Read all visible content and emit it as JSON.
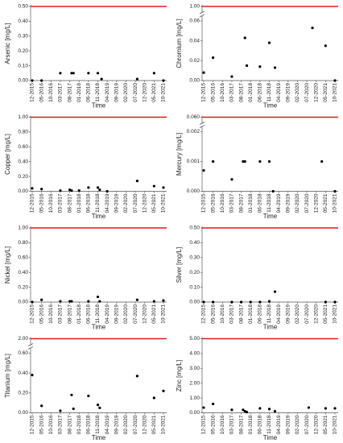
{
  "chart_data": [
    {
      "type": "scatter",
      "y_label": "Arsenic [mg/L]",
      "x_label": "Time",
      "color": "#000000",
      "limit": 0.5,
      "limit_color": "#e31a1c",
      "x": [
        "12-2015",
        "05-2016",
        "03-2017",
        "09-2017",
        "10-2017",
        "06-2018",
        "11-2018",
        "01-2019",
        "08-2020",
        "05-2021",
        "10-2021"
      ],
      "values": [
        0,
        0,
        0.05,
        0.05,
        0.05,
        0.05,
        0.05,
        0.01,
        0.01,
        0.05,
        0
      ],
      "xlim": [
        "12-2015",
        "10-2021"
      ],
      "xticks": [
        "12-2015",
        "05-2016",
        "10-2016",
        "03-2017",
        "08-2017",
        "01-2018",
        "06-2018",
        "11-2018",
        "04-2019",
        "09-2019",
        "02-2020",
        "07-2020",
        "12-2020",
        "05-2021",
        "10-2021"
      ],
      "ylim": [
        0,
        0.5
      ],
      "yticks": [
        {
          "value": 0,
          "label": "0.00"
        },
        {
          "value": 0.1,
          "label": "0.10"
        },
        {
          "value": 0.2,
          "label": "0.20"
        },
        {
          "value": 0.3,
          "label": "0.30"
        },
        {
          "value": 0.4,
          "label": "0.40"
        },
        {
          "value": 0.5,
          "label": "0.50"
        }
      ]
    },
    {
      "type": "scatter",
      "y_label": "Chromium [mg/L]",
      "x_label": "Time",
      "color": "#000000",
      "limit": 1,
      "limit_color": "#e31a1c",
      "x": [
        "12-2015",
        "05-2016",
        "03-2017",
        "10-2017",
        "11-2017",
        "06-2018",
        "11-2018",
        "02-2019",
        "10-2020",
        "05-2021",
        "10-2021"
      ],
      "values": [
        0.008,
        0.023,
        0.004,
        0.043,
        0.015,
        0.014,
        0.038,
        0.013,
        0.053,
        0.035,
        0
      ],
      "xlim": [
        "12-2015",
        "10-2021"
      ],
      "xticks": [
        "12-2015",
        "05-2016",
        "10-2016",
        "03-2017",
        "08-2017",
        "01-2018",
        "06-2018",
        "11-2018",
        "04-2019",
        "09-2019",
        "02-2020",
        "07-2020",
        "12-2020",
        "05-2021",
        "10-2021"
      ],
      "ylim": [
        0,
        0.06
      ],
      "yticks": [
        {
          "value": 0,
          "label": "0.00"
        },
        {
          "value": 0.02,
          "label": "0.02"
        },
        {
          "value": 0.04,
          "label": "0.04"
        },
        {
          "value": 0.06,
          "label": "0.06"
        }
      ],
      "upper_ticks": [
        {
          "value": 1,
          "label": "1.00"
        }
      ]
    },
    {
      "type": "scatter",
      "y_label": "Copper [mg/L]",
      "x_label": "Time",
      "color": "#000000",
      "limit": 1,
      "limit_color": "#e31a1c",
      "x": [
        "12-2015",
        "05-2016",
        "03-2017",
        "08-2017",
        "09-2017",
        "01-2018",
        "06-2018",
        "11-2018",
        "12-2018",
        "04-2019",
        "08-2020",
        "05-2021",
        "10-2021"
      ],
      "values": [
        0.04,
        0.03,
        0.01,
        0.02,
        0.01,
        0.01,
        0.05,
        0.05,
        0.02,
        0,
        0.14,
        0.07,
        0.05
      ],
      "xlim": [
        "12-2015",
        "10-2021"
      ],
      "xticks": [
        "12-2015",
        "05-2016",
        "10-2016",
        "03-2017",
        "08-2017",
        "01-2018",
        "06-2018",
        "11-2018",
        "04-2019",
        "09-2019",
        "02-2020",
        "07-2020",
        "12-2020",
        "05-2021",
        "10-2021"
      ],
      "ylim": [
        0,
        1
      ],
      "yticks": [
        {
          "value": 0,
          "label": "0.00"
        },
        {
          "value": 0.2,
          "label": "0.20"
        },
        {
          "value": 0.4,
          "label": "0.40"
        },
        {
          "value": 0.6,
          "label": "0.60"
        },
        {
          "value": 0.8,
          "label": "0.80"
        },
        {
          "value": 1,
          "label": "1.00"
        }
      ]
    },
    {
      "type": "scatter",
      "y_label": "Mercury [mg/L]",
      "x_label": "Time",
      "color": "#000000",
      "limit": 0.06,
      "limit_color": "#e31a1c",
      "x": [
        "12-2015",
        "05-2016",
        "03-2017",
        "09-2017",
        "10-2017",
        "06-2018",
        "11-2018",
        "01-2019",
        "03-2021",
        "10-2021"
      ],
      "values": [
        0.0007,
        0.001,
        0.0004,
        0.001,
        0.001,
        0.001,
        0.001,
        0,
        0.001,
        0
      ],
      "xlim": [
        "12-2015",
        "10-2021"
      ],
      "xticks": [
        "12-2015",
        "05-2016",
        "10-2016",
        "03-2017",
        "08-2017",
        "01-2018",
        "06-2018",
        "11-2018",
        "04-2019",
        "09-2019",
        "02-2020",
        "07-2020",
        "12-2020",
        "05-2021",
        "10-2021"
      ],
      "ylim": [
        0,
        0.002
      ],
      "yticks": [
        {
          "value": 0,
          "label": "0.000"
        },
        {
          "value": 0.001,
          "label": "0.001"
        },
        {
          "value": 0.002,
          "label": "0.002"
        }
      ],
      "upper_ticks": [
        {
          "value": 0.06,
          "label": "0.060"
        }
      ]
    },
    {
      "type": "scatter",
      "y_label": "Nickel [mg/L]",
      "x_label": "Time",
      "color": "#000000",
      "limit": 1,
      "limit_color": "#e31a1c",
      "x": [
        "12-2015",
        "05-2016",
        "03-2017",
        "08-2017",
        "09-2017",
        "06-2018",
        "11-2018",
        "12-2018",
        "08-2020",
        "05-2021",
        "10-2021"
      ],
      "values": [
        0,
        0.03,
        0.01,
        0.01,
        0.01,
        0.01,
        0.07,
        0.01,
        0.03,
        0.01,
        0.02
      ],
      "xlim": [
        "12-2015",
        "10-2021"
      ],
      "xticks": [
        "12-2015",
        "05-2016",
        "10-2016",
        "03-2017",
        "08-2017",
        "01-2018",
        "06-2018",
        "11-2018",
        "04-2019",
        "09-2019",
        "02-2020",
        "07-2020",
        "12-2020",
        "05-2021",
        "10-2021"
      ],
      "ylim": [
        0,
        1
      ],
      "yticks": [
        {
          "value": 0,
          "label": "0.00"
        },
        {
          "value": 0.2,
          "label": "0.20"
        },
        {
          "value": 0.4,
          "label": "0.40"
        },
        {
          "value": 0.6,
          "label": "0.60"
        },
        {
          "value": 0.8,
          "label": "0.80"
        },
        {
          "value": 1,
          "label": "1.00"
        }
      ]
    },
    {
      "type": "scatter",
      "y_label": "Silver [mg/L]",
      "x_label": "Time",
      "color": "#000000",
      "limit": 0.5,
      "limit_color": "#e31a1c",
      "x": [
        "12-2015",
        "05-2016",
        "03-2017",
        "08-2017",
        "01-2018",
        "06-2018",
        "11-2018",
        "02-2019",
        "05-2021",
        "10-2021"
      ],
      "values": [
        0,
        0,
        0,
        0,
        0,
        0,
        0.005,
        0.07,
        0,
        0
      ],
      "xlim": [
        "12-2015",
        "10-2021"
      ],
      "xticks": [
        "12-2015",
        "05-2016",
        "10-2016",
        "03-2017",
        "08-2017",
        "01-2018",
        "06-2018",
        "11-2018",
        "04-2019",
        "09-2019",
        "02-2020",
        "07-2020",
        "12-2020",
        "05-2021",
        "10-2021"
      ],
      "ylim": [
        0,
        0.5
      ],
      "yticks": [
        {
          "value": 0,
          "label": "0.00"
        },
        {
          "value": 0.1,
          "label": "0.10"
        },
        {
          "value": 0.2,
          "label": "0.20"
        },
        {
          "value": 0.3,
          "label": "0.30"
        },
        {
          "value": 0.4,
          "label": "0.40"
        },
        {
          "value": 0.5,
          "label": "0.50"
        }
      ]
    },
    {
      "type": "scatter",
      "y_label": "Titanium [mg/L]",
      "x_label": "Time",
      "color": "#000000",
      "limit": 2,
      "limit_color": "#e31a1c",
      "x": [
        "12-2015",
        "05-2016",
        "03-2017",
        "09-2017",
        "10-2017",
        "06-2018",
        "11-2018",
        "12-2018",
        "08-2020",
        "05-2021",
        "10-2021"
      ],
      "values": [
        0.38,
        0.07,
        0.02,
        0.18,
        0.04,
        0.17,
        0.08,
        0.05,
        0.37,
        0.15,
        0.22
      ],
      "xlim": [
        "12-2015",
        "10-2021"
      ],
      "xticks": [
        "12-2015",
        "05-2016",
        "10-2016",
        "03-2017",
        "08-2017",
        "01-2018",
        "06-2018",
        "11-2018",
        "04-2019",
        "09-2019",
        "02-2020",
        "07-2020",
        "12-2020",
        "05-2021",
        "10-2021"
      ],
      "ylim": [
        0,
        0.6
      ],
      "yticks": [
        {
          "value": 0,
          "label": "0.00"
        },
        {
          "value": 0.2,
          "label": "0.20"
        },
        {
          "value": 0.4,
          "label": "0.40"
        },
        {
          "value": 0.6,
          "label": "0.60"
        }
      ],
      "upper_ticks": [
        {
          "value": 2,
          "label": "2.00"
        }
      ]
    },
    {
      "type": "scatter",
      "y_label": "Zinc [mg/L]",
      "x_label": "Time",
      "color": "#000000",
      "limit": 5,
      "limit_color": "#e31a1c",
      "x": [
        "12-2015",
        "05-2016",
        "03-2017",
        "09-2017",
        "10-2017",
        "11-2017",
        "06-2018",
        "11-2018",
        "02-2019",
        "08-2020",
        "05-2021",
        "10-2021"
      ],
      "values": [
        0.35,
        0.6,
        0.2,
        0.2,
        0.1,
        0.05,
        0.3,
        0.25,
        0.1,
        0.35,
        0.3,
        0.3
      ],
      "xlim": [
        "12-2015",
        "10-2021"
      ],
      "xticks": [
        "12-2015",
        "05-2016",
        "10-2016",
        "03-2017",
        "08-2017",
        "01-2018",
        "06-2018",
        "11-2018",
        "04-2019",
        "09-2019",
        "02-2020",
        "07-2020",
        "12-2020",
        "05-2021",
        "10-2021"
      ],
      "ylim": [
        0,
        5
      ],
      "yticks": [
        {
          "value": 0,
          "label": "0.00"
        },
        {
          "value": 1,
          "label": "1.00"
        },
        {
          "value": 2,
          "label": "2.00"
        },
        {
          "value": 3,
          "label": "3.00"
        },
        {
          "value": 4,
          "label": "4.00"
        },
        {
          "value": 5,
          "label": "5.00"
        }
      ]
    }
  ]
}
